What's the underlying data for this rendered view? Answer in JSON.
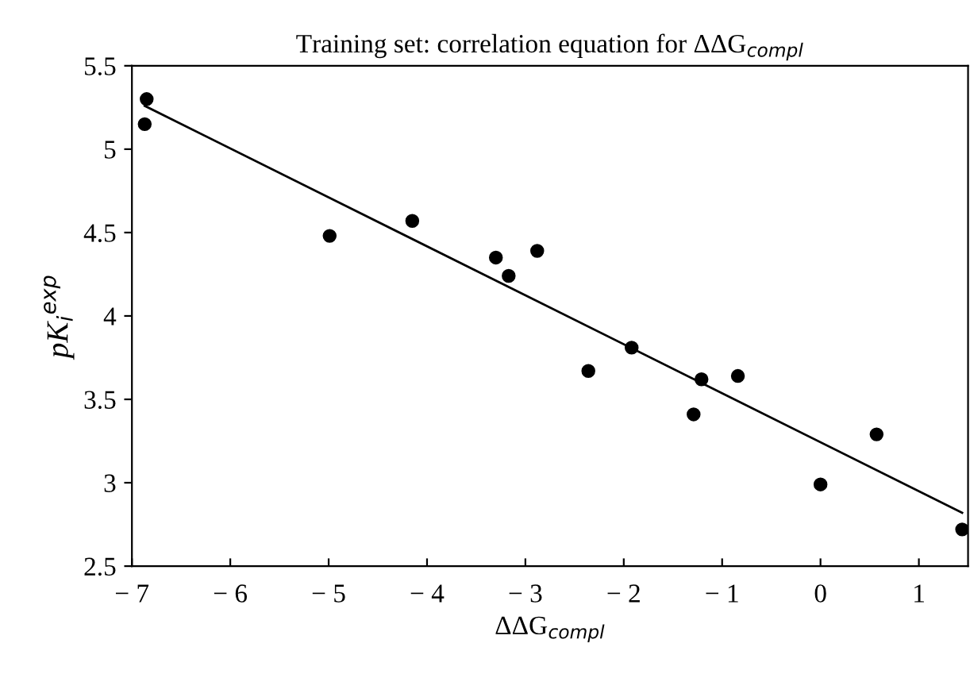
{
  "chart_data": {
    "type": "scatter",
    "title": "Training set: correlation equation for ΔΔG$_{compl}$",
    "xlabel": "ΔΔG$_{compl}$",
    "ylabel": "pK$_{i}$$^{exp}$",
    "marker": "circle",
    "grid": false,
    "legend": false,
    "xlim": [
      -7,
      1.5
    ],
    "ylim": [
      2.5,
      5.5
    ],
    "xticks": [
      {
        "value": -7,
        "label": "− 7"
      },
      {
        "value": -6,
        "label": "− 6"
      },
      {
        "value": -5,
        "label": "− 5"
      },
      {
        "value": -4,
        "label": "− 4"
      },
      {
        "value": -3,
        "label": "− 3"
      },
      {
        "value": -2,
        "label": "− 2"
      },
      {
        "value": -1,
        "label": "− 1"
      },
      0,
      1
    ],
    "yticks": [
      2.5,
      3,
      3.5,
      4,
      4.5,
      5,
      5.5
    ],
    "series": [
      {
        "color": "#000000",
        "x": [
          -6.85,
          -6.87,
          -4.99,
          -4.15,
          -3.3,
          -3.17,
          -2.88,
          -2.36,
          -1.92,
          -1.21,
          -1.29,
          -0.84,
          0.0,
          0.57,
          1.44
        ],
        "values": [
          5.3,
          5.15,
          4.48,
          4.57,
          4.35,
          4.24,
          4.39,
          3.67,
          3.81,
          3.62,
          3.41,
          3.64,
          2.99,
          3.29,
          2.72
        ]
      },
      {
        "type": "line",
        "marker": "none",
        "color": "#000000",
        "x": [
          -6.87,
          1.44
        ],
        "values": [
          5.26,
          2.82
        ]
      }
    ]
  }
}
